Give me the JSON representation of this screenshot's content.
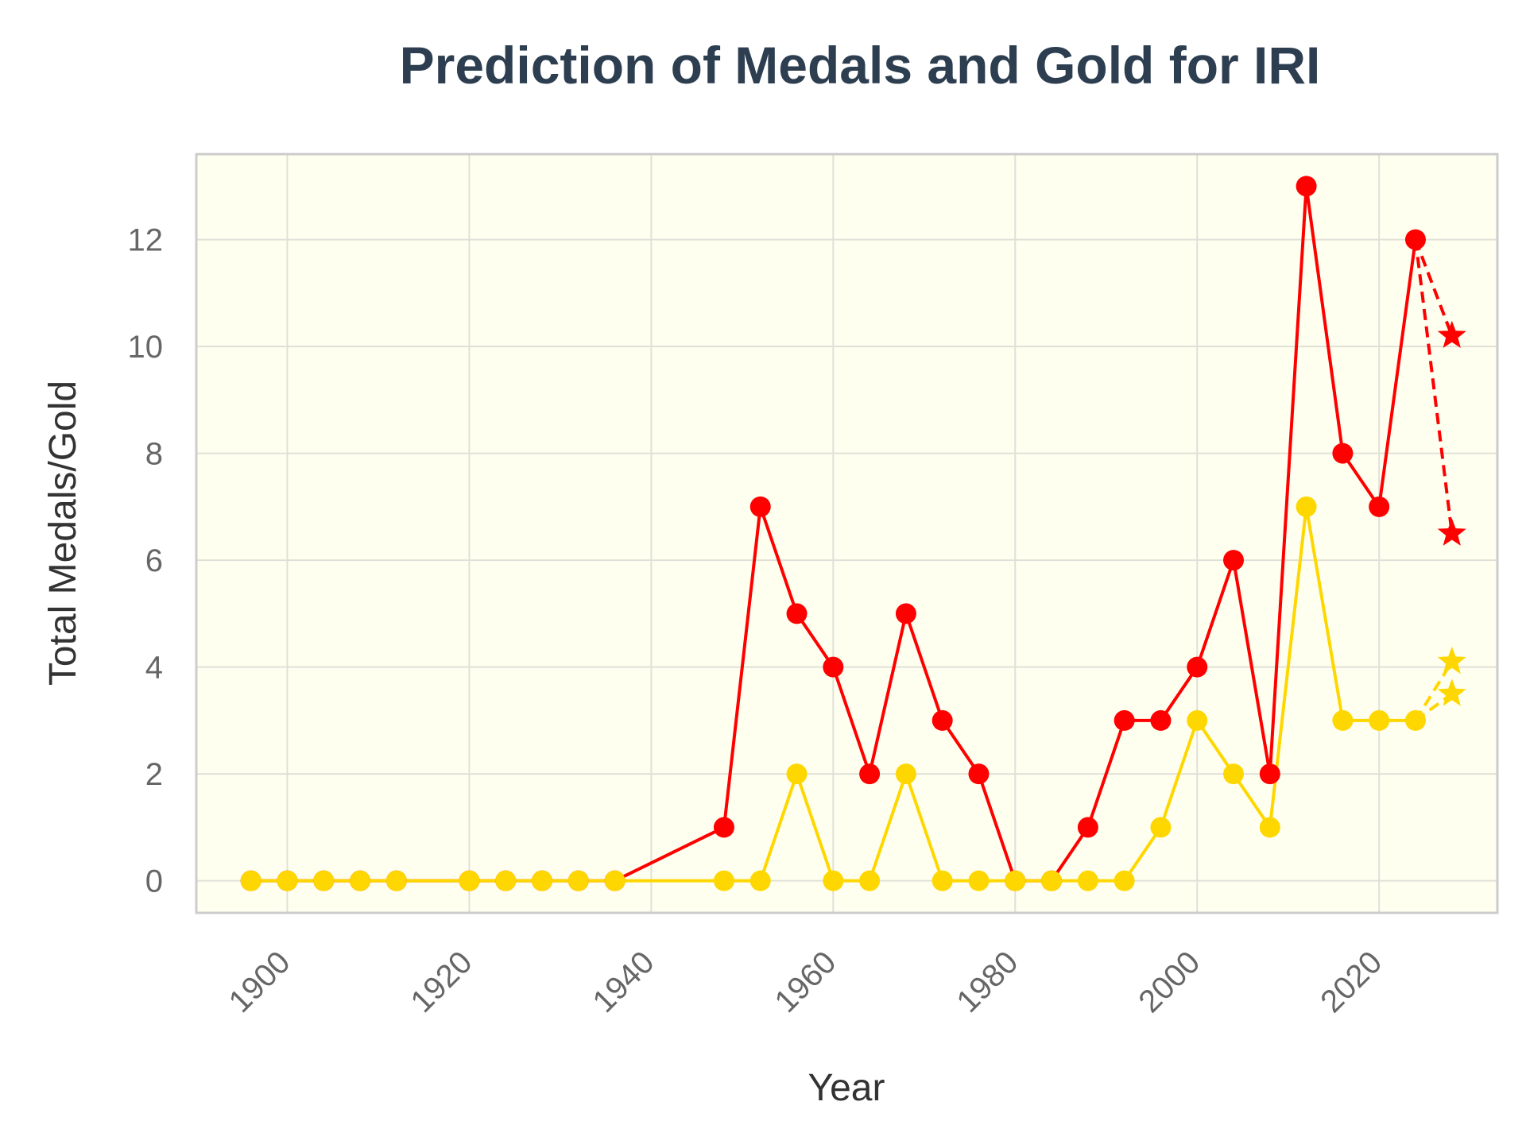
{
  "chart_data": {
    "type": "line",
    "title": "Prediction of Medals and Gold for IRI",
    "xlabel": "Year",
    "ylabel": "Total Medals/Gold",
    "xlim": [
      1890,
      2033
    ],
    "ylim": [
      -0.6,
      13.6
    ],
    "xticks": [
      1900,
      1920,
      1940,
      1960,
      1980,
      2000,
      2020
    ],
    "yticks": [
      0,
      2,
      4,
      6,
      8,
      10,
      12
    ],
    "grid": true,
    "legend": "none",
    "series": [
      {
        "color": "#ff0000",
        "marker": "circle",
        "line": "solid",
        "points": [
          [
            1896,
            0
          ],
          [
            1900,
            0
          ],
          [
            1904,
            0
          ],
          [
            1908,
            0
          ],
          [
            1912,
            0
          ],
          [
            1920,
            0
          ],
          [
            1924,
            0
          ],
          [
            1928,
            0
          ],
          [
            1932,
            0
          ],
          [
            1936,
            0
          ],
          [
            1948,
            1
          ],
          [
            1952,
            7
          ],
          [
            1956,
            5
          ],
          [
            1960,
            4
          ],
          [
            1964,
            2
          ],
          [
            1968,
            5
          ],
          [
            1972,
            3
          ],
          [
            1976,
            2
          ],
          [
            1980,
            0
          ],
          [
            1984,
            0
          ],
          [
            1988,
            1
          ],
          [
            1992,
            3
          ],
          [
            1996,
            3
          ],
          [
            2000,
            4
          ],
          [
            2004,
            6
          ],
          [
            2008,
            2
          ],
          [
            2012,
            13
          ],
          [
            2016,
            8
          ],
          [
            2020,
            7
          ],
          [
            2024,
            12
          ]
        ]
      },
      {
        "color": "#ffd700",
        "marker": "circle",
        "line": "solid",
        "points": [
          [
            1896,
            0
          ],
          [
            1900,
            0
          ],
          [
            1904,
            0
          ],
          [
            1908,
            0
          ],
          [
            1912,
            0
          ],
          [
            1920,
            0
          ],
          [
            1924,
            0
          ],
          [
            1928,
            0
          ],
          [
            1932,
            0
          ],
          [
            1936,
            0
          ],
          [
            1948,
            0
          ],
          [
            1952,
            0
          ],
          [
            1956,
            2
          ],
          [
            1960,
            0
          ],
          [
            1964,
            0
          ],
          [
            1968,
            2
          ],
          [
            1972,
            0
          ],
          [
            1976,
            0
          ],
          [
            1980,
            0
          ],
          [
            1984,
            0
          ],
          [
            1988,
            0
          ],
          [
            1992,
            0
          ],
          [
            1996,
            1
          ],
          [
            2000,
            3
          ],
          [
            2004,
            2
          ],
          [
            2008,
            1
          ],
          [
            2012,
            7
          ],
          [
            2016,
            3
          ],
          [
            2020,
            3
          ],
          [
            2024,
            3
          ]
        ]
      }
    ],
    "predictions": [
      {
        "color": "#ff0000",
        "marker": "star",
        "line": "dashed",
        "from": [
          2024,
          12
        ],
        "to": [
          2028,
          10.2
        ]
      },
      {
        "color": "#ff0000",
        "marker": "star",
        "line": "dashed",
        "from": [
          2024,
          12
        ],
        "to": [
          2028,
          6.5
        ]
      },
      {
        "color": "#ffd700",
        "marker": "star",
        "line": "dashed",
        "from": [
          2024,
          3
        ],
        "to": [
          2028,
          4.1
        ]
      },
      {
        "color": "#ffd700",
        "marker": "star",
        "line": "dashed",
        "from": [
          2024,
          3
        ],
        "to": [
          2028,
          3.5
        ]
      }
    ],
    "colors": {
      "plot_background": "#fffff0",
      "frame": "#cccccc",
      "grid": "#e0e0d8",
      "title": "#2c3e50"
    }
  }
}
